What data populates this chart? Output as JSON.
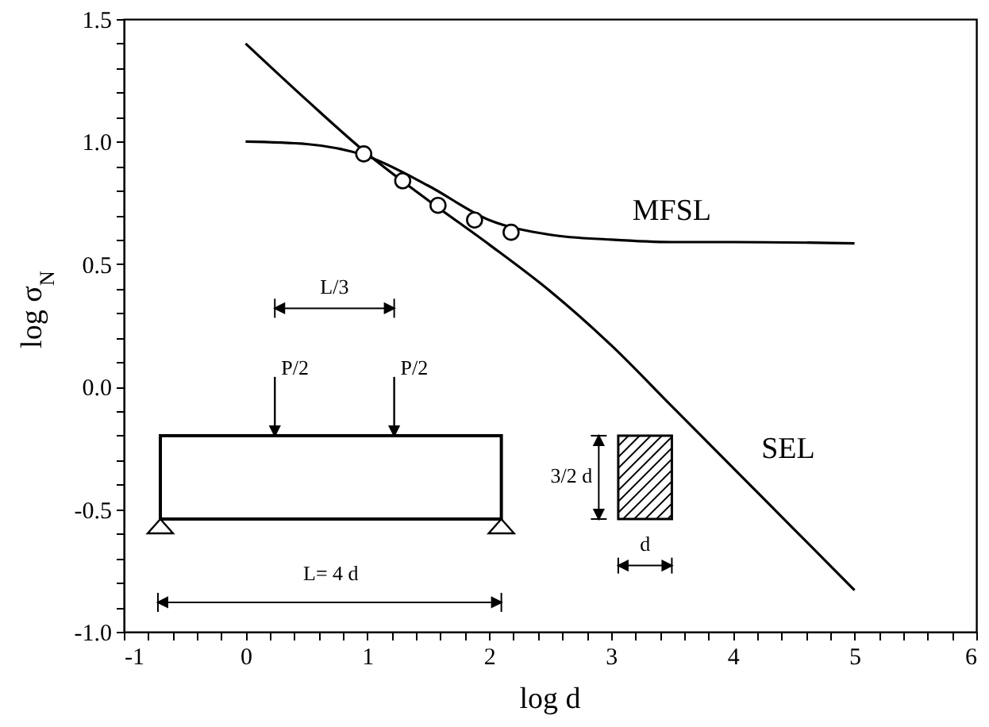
{
  "chart_data": {
    "type": "line",
    "xlabel": "log d",
    "ylabel": "log σ$_{N}$",
    "xlim": [
      -1,
      6
    ],
    "ylim": [
      -1.0,
      1.5
    ],
    "xticks": [
      -1,
      {
        "value": -0.8,
        "label": null
      },
      {
        "value": -0.6,
        "label": null
      },
      {
        "value": -0.4,
        "label": null
      },
      {
        "value": -0.2,
        "label": null
      },
      0,
      {
        "value": 0.2,
        "label": null
      },
      {
        "value": 0.4,
        "label": null
      },
      {
        "value": 0.6,
        "label": null
      },
      {
        "value": 0.8,
        "label": null
      },
      1,
      {
        "value": 1.2,
        "label": null
      },
      {
        "value": 1.4,
        "label": null
      },
      {
        "value": 1.6,
        "label": null
      },
      {
        "value": 1.8,
        "label": null
      },
      2,
      {
        "value": 2.2,
        "label": null
      },
      {
        "value": 2.4,
        "label": null
      },
      {
        "value": 2.6,
        "label": null
      },
      {
        "value": 2.8,
        "label": null
      },
      3,
      {
        "value": 3.2,
        "label": null
      },
      {
        "value": 3.4,
        "label": null
      },
      {
        "value": 3.6,
        "label": null
      },
      {
        "value": 3.8,
        "label": null
      },
      4,
      {
        "value": 4.2,
        "label": null
      },
      {
        "value": 4.4,
        "label": null
      },
      {
        "value": 4.6,
        "label": null
      },
      {
        "value": 4.8,
        "label": null
      },
      5,
      {
        "value": 5.2,
        "label": null
      },
      {
        "value": 5.4,
        "label": null
      },
      {
        "value": 5.6,
        "label": null
      },
      {
        "value": 5.8,
        "label": null
      },
      6
    ],
    "yticks": [
      {
        "value": -1.0,
        "label": "-1.0"
      },
      {
        "value": -0.9,
        "label": null
      },
      {
        "value": -0.8,
        "label": null
      },
      {
        "value": -0.7,
        "label": null
      },
      {
        "value": -0.6,
        "label": null
      },
      -0.5,
      {
        "value": -0.4,
        "label": null
      },
      {
        "value": -0.3,
        "label": null
      },
      {
        "value": -0.2,
        "label": null
      },
      {
        "value": -0.1,
        "label": null
      },
      {
        "value": 0,
        "label": "0.0"
      },
      {
        "value": 0.1,
        "label": null
      },
      {
        "value": 0.2,
        "label": null
      },
      {
        "value": 0.3,
        "label": null
      },
      {
        "value": 0.4,
        "label": null
      },
      0.5,
      {
        "value": 0.6,
        "label": null
      },
      {
        "value": 0.7,
        "label": null
      },
      {
        "value": 0.8,
        "label": null
      },
      {
        "value": 0.9,
        "label": null
      },
      {
        "value": 1.0,
        "label": "1.0"
      },
      {
        "value": 1.1,
        "label": null
      },
      {
        "value": 1.2,
        "label": null
      },
      {
        "value": 1.3,
        "label": null
      },
      {
        "value": 1.4,
        "label": null
      },
      1.5
    ],
    "grid": false,
    "series": [
      {
        "name": "SEL",
        "type": "line",
        "color": "#000000",
        "x": [
          0,
          0.5,
          1,
          1.5,
          2,
          2.5,
          3,
          3.5,
          4,
          4.5,
          5
        ],
        "values": [
          1.4,
          1.17,
          0.95,
          0.76,
          0.58,
          0.39,
          0.17,
          -0.08,
          -0.33,
          -0.58,
          -0.83
        ]
      },
      {
        "name": "MFSL",
        "color": "#000000",
        "x": [
          0,
          0.5,
          1,
          1.5,
          2,
          2.5,
          3,
          3.5,
          4,
          5
        ],
        "values": [
          1.0,
          0.99,
          0.94,
          0.82,
          0.68,
          0.62,
          0.6,
          0.59,
          0.59,
          0.585
        ]
      },
      {
        "type": "scatter",
        "marker": "circle",
        "color": "#000000",
        "x": [
          0.97,
          1.29,
          1.58,
          1.88,
          2.18
        ],
        "values": [
          0.95,
          0.84,
          0.74,
          0.68,
          0.63
        ]
      }
    ],
    "annotations": [
      "L/3",
      "P/2",
      "P/2",
      "L= 4 d",
      "3/2 d",
      "d"
    ]
  }
}
